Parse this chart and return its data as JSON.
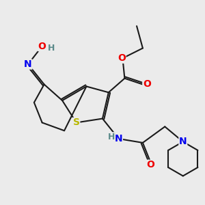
{
  "bg_color": "#ebebeb",
  "bond_color": "#1a1a1a",
  "S_color": "#b8b800",
  "N_color": "#0000ee",
  "O_color": "#ee0000",
  "H_color": "#5a8a8a",
  "line_width": 1.5,
  "dbo": 0.08,
  "font_size_atom": 10,
  "font_size_H": 9,
  "figsize": [
    3.0,
    3.0
  ],
  "dpi": 100,
  "xlim": [
    0,
    10
  ],
  "ylim": [
    0,
    10
  ]
}
